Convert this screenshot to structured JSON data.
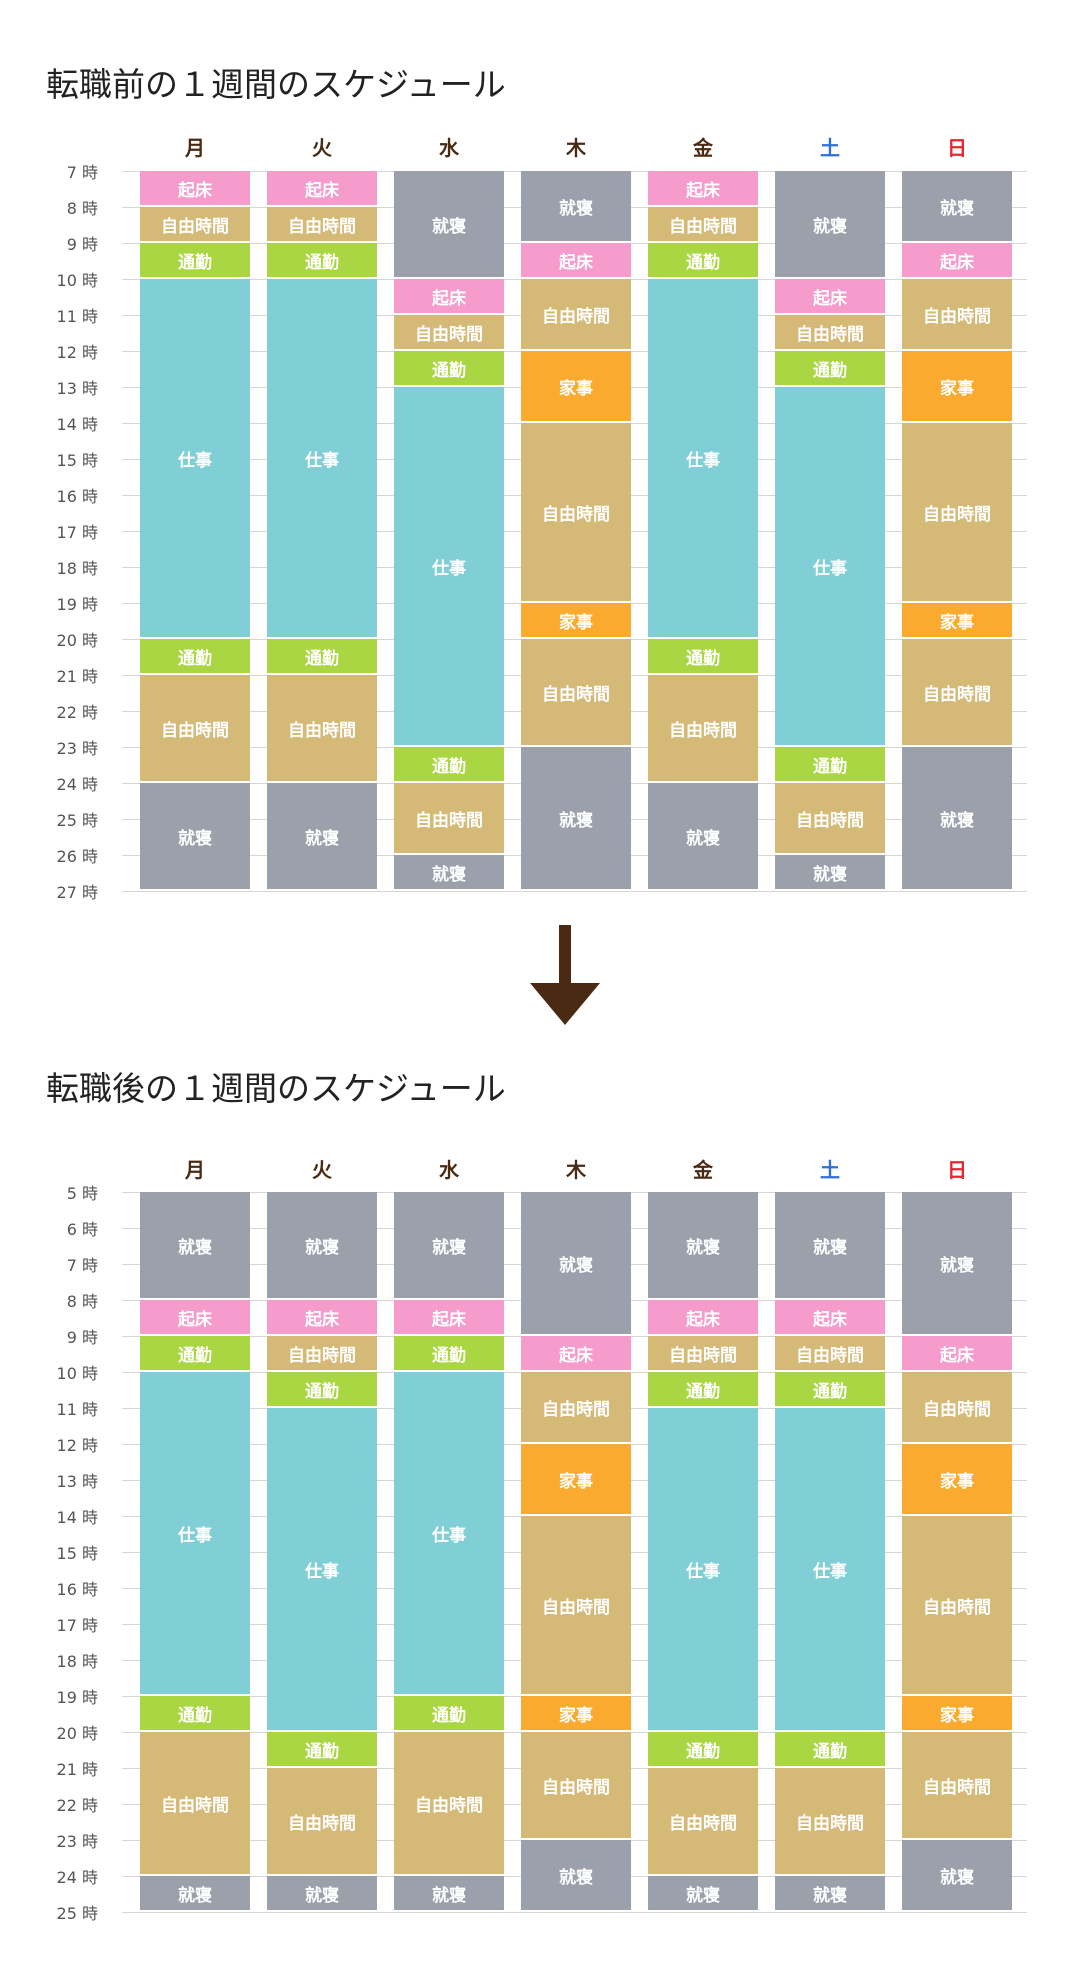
{
  "colors": {
    "起床": "#f59ccd",
    "自由時間": "#d4b977",
    "通勤": "#abd643",
    "仕事": "#80cfd6",
    "就寝": "#9ba0ab",
    "家事": "#fbaa30",
    "day_default": "#4a2a12",
    "saturday": "#2f6fd6",
    "sunday": "#e8262e",
    "arrow": "#4a2a12"
  },
  "arrow_icon": "down-arrow-icon",
  "chart_data": [
    {
      "type": "schedule",
      "title": "転職前の１週間のスケジュール",
      "hour_suffix": "時",
      "hours": [
        7,
        8,
        9,
        10,
        11,
        12,
        13,
        14,
        15,
        16,
        17,
        18,
        19,
        20,
        21,
        22,
        23,
        24,
        25,
        26,
        27
      ],
      "days": [
        {
          "label": "月",
          "color": "day_default",
          "blocks": [
            {
              "label": "起床",
              "start": 7,
              "end": 8
            },
            {
              "label": "自由時間",
              "start": 8,
              "end": 9
            },
            {
              "label": "通勤",
              "start": 9,
              "end": 10
            },
            {
              "label": "仕事",
              "start": 10,
              "end": 20
            },
            {
              "label": "通勤",
              "start": 20,
              "end": 21
            },
            {
              "label": "自由時間",
              "start": 21,
              "end": 24
            },
            {
              "label": "就寝",
              "start": 24,
              "end": 27
            }
          ]
        },
        {
          "label": "火",
          "color": "day_default",
          "blocks": [
            {
              "label": "起床",
              "start": 7,
              "end": 8
            },
            {
              "label": "自由時間",
              "start": 8,
              "end": 9
            },
            {
              "label": "通勤",
              "start": 9,
              "end": 10
            },
            {
              "label": "仕事",
              "start": 10,
              "end": 20
            },
            {
              "label": "通勤",
              "start": 20,
              "end": 21
            },
            {
              "label": "自由時間",
              "start": 21,
              "end": 24
            },
            {
              "label": "就寝",
              "start": 24,
              "end": 27
            }
          ]
        },
        {
          "label": "水",
          "color": "day_default",
          "blocks": [
            {
              "label": "就寝",
              "start": 7,
              "end": 10
            },
            {
              "label": "起床",
              "start": 10,
              "end": 11
            },
            {
              "label": "自由時間",
              "start": 11,
              "end": 12
            },
            {
              "label": "通勤",
              "start": 12,
              "end": 13
            },
            {
              "label": "仕事",
              "start": 13,
              "end": 23
            },
            {
              "label": "通勤",
              "start": 23,
              "end": 24
            },
            {
              "label": "自由時間",
              "start": 24,
              "end": 26
            },
            {
              "label": "就寝",
              "start": 26,
              "end": 27
            }
          ]
        },
        {
          "label": "木",
          "color": "day_default",
          "blocks": [
            {
              "label": "就寝",
              "start": 7,
              "end": 9
            },
            {
              "label": "起床",
              "start": 9,
              "end": 10
            },
            {
              "label": "自由時間",
              "start": 10,
              "end": 12
            },
            {
              "label": "家事",
              "start": 12,
              "end": 14
            },
            {
              "label": "自由時間",
              "start": 14,
              "end": 19
            },
            {
              "label": "家事",
              "start": 19,
              "end": 20
            },
            {
              "label": "自由時間",
              "start": 20,
              "end": 23
            },
            {
              "label": "就寝",
              "start": 23,
              "end": 27
            }
          ]
        },
        {
          "label": "金",
          "color": "day_default",
          "blocks": [
            {
              "label": "起床",
              "start": 7,
              "end": 8
            },
            {
              "label": "自由時間",
              "start": 8,
              "end": 9
            },
            {
              "label": "通勤",
              "start": 9,
              "end": 10
            },
            {
              "label": "仕事",
              "start": 10,
              "end": 20
            },
            {
              "label": "通勤",
              "start": 20,
              "end": 21
            },
            {
              "label": "自由時間",
              "start": 21,
              "end": 24
            },
            {
              "label": "就寝",
              "start": 24,
              "end": 27
            }
          ]
        },
        {
          "label": "土",
          "color": "saturday",
          "blocks": [
            {
              "label": "就寝",
              "start": 7,
              "end": 10
            },
            {
              "label": "起床",
              "start": 10,
              "end": 11
            },
            {
              "label": "自由時間",
              "start": 11,
              "end": 12
            },
            {
              "label": "通勤",
              "start": 12,
              "end": 13
            },
            {
              "label": "仕事",
              "start": 13,
              "end": 23
            },
            {
              "label": "通勤",
              "start": 23,
              "end": 24
            },
            {
              "label": "自由時間",
              "start": 24,
              "end": 26
            },
            {
              "label": "就寝",
              "start": 26,
              "end": 27
            }
          ]
        },
        {
          "label": "日",
          "color": "sunday",
          "blocks": [
            {
              "label": "就寝",
              "start": 7,
              "end": 9
            },
            {
              "label": "起床",
              "start": 9,
              "end": 10
            },
            {
              "label": "自由時間",
              "start": 10,
              "end": 12
            },
            {
              "label": "家事",
              "start": 12,
              "end": 14
            },
            {
              "label": "自由時間",
              "start": 14,
              "end": 19
            },
            {
              "label": "家事",
              "start": 19,
              "end": 20
            },
            {
              "label": "自由時間",
              "start": 20,
              "end": 23
            },
            {
              "label": "就寝",
              "start": 23,
              "end": 27
            }
          ]
        }
      ]
    },
    {
      "type": "schedule",
      "title": "転職後の１週間のスケジュール",
      "hour_suffix": "時",
      "hours": [
        5,
        6,
        7,
        8,
        9,
        10,
        11,
        12,
        13,
        14,
        15,
        16,
        17,
        18,
        19,
        20,
        21,
        22,
        23,
        24,
        25
      ],
      "days": [
        {
          "label": "月",
          "color": "day_default",
          "blocks": [
            {
              "label": "就寝",
              "start": 5,
              "end": 8
            },
            {
              "label": "起床",
              "start": 8,
              "end": 9
            },
            {
              "label": "通勤",
              "start": 9,
              "end": 10
            },
            {
              "label": "仕事",
              "start": 10,
              "end": 19
            },
            {
              "label": "通勤",
              "start": 19,
              "end": 20
            },
            {
              "label": "自由時間",
              "start": 20,
              "end": 24
            },
            {
              "label": "就寝",
              "start": 24,
              "end": 25
            }
          ]
        },
        {
          "label": "火",
          "color": "day_default",
          "blocks": [
            {
              "label": "就寝",
              "start": 5,
              "end": 8
            },
            {
              "label": "起床",
              "start": 8,
              "end": 9
            },
            {
              "label": "自由時間",
              "start": 9,
              "end": 10
            },
            {
              "label": "通勤",
              "start": 10,
              "end": 11
            },
            {
              "label": "仕事",
              "start": 11,
              "end": 20
            },
            {
              "label": "通勤",
              "start": 20,
              "end": 21
            },
            {
              "label": "自由時間",
              "start": 21,
              "end": 24
            },
            {
              "label": "就寝",
              "start": 24,
              "end": 25
            }
          ]
        },
        {
          "label": "水",
          "color": "day_default",
          "blocks": [
            {
              "label": "就寝",
              "start": 5,
              "end": 8
            },
            {
              "label": "起床",
              "start": 8,
              "end": 9
            },
            {
              "label": "通勤",
              "start": 9,
              "end": 10
            },
            {
              "label": "仕事",
              "start": 10,
              "end": 19
            },
            {
              "label": "通勤",
              "start": 19,
              "end": 20
            },
            {
              "label": "自由時間",
              "start": 20,
              "end": 24
            },
            {
              "label": "就寝",
              "start": 24,
              "end": 25
            }
          ]
        },
        {
          "label": "木",
          "color": "day_default",
          "blocks": [
            {
              "label": "就寝",
              "start": 5,
              "end": 9
            },
            {
              "label": "起床",
              "start": 9,
              "end": 10
            },
            {
              "label": "自由時間",
              "start": 10,
              "end": 12
            },
            {
              "label": "家事",
              "start": 12,
              "end": 14
            },
            {
              "label": "自由時間",
              "start": 14,
              "end": 19
            },
            {
              "label": "家事",
              "start": 19,
              "end": 20
            },
            {
              "label": "自由時間",
              "start": 20,
              "end": 23
            },
            {
              "label": "就寝",
              "start": 23,
              "end": 25
            }
          ]
        },
        {
          "label": "金",
          "color": "day_default",
          "blocks": [
            {
              "label": "就寝",
              "start": 5,
              "end": 8
            },
            {
              "label": "起床",
              "start": 8,
              "end": 9
            },
            {
              "label": "自由時間",
              "start": 9,
              "end": 10
            },
            {
              "label": "通勤",
              "start": 10,
              "end": 11
            },
            {
              "label": "仕事",
              "start": 11,
              "end": 20
            },
            {
              "label": "通勤",
              "start": 20,
              "end": 21
            },
            {
              "label": "自由時間",
              "start": 21,
              "end": 24
            },
            {
              "label": "就寝",
              "start": 24,
              "end": 25
            }
          ]
        },
        {
          "label": "土",
          "color": "saturday",
          "blocks": [
            {
              "label": "就寝",
              "start": 5,
              "end": 8
            },
            {
              "label": "起床",
              "start": 8,
              "end": 9
            },
            {
              "label": "自由時間",
              "start": 9,
              "end": 10
            },
            {
              "label": "通勤",
              "start": 10,
              "end": 11
            },
            {
              "label": "仕事",
              "start": 11,
              "end": 20
            },
            {
              "label": "通勤",
              "start": 20,
              "end": 21
            },
            {
              "label": "自由時間",
              "start": 21,
              "end": 24
            },
            {
              "label": "就寝",
              "start": 24,
              "end": 25
            }
          ]
        },
        {
          "label": "日",
          "color": "sunday",
          "blocks": [
            {
              "label": "就寝",
              "start": 5,
              "end": 9
            },
            {
              "label": "起床",
              "start": 9,
              "end": 10
            },
            {
              "label": "自由時間",
              "start": 10,
              "end": 12
            },
            {
              "label": "家事",
              "start": 12,
              "end": 14
            },
            {
              "label": "自由時間",
              "start": 14,
              "end": 19
            },
            {
              "label": "家事",
              "start": 19,
              "end": 20
            },
            {
              "label": "自由時間",
              "start": 20,
              "end": 23
            },
            {
              "label": "就寝",
              "start": 23,
              "end": 25
            }
          ]
        }
      ]
    }
  ]
}
